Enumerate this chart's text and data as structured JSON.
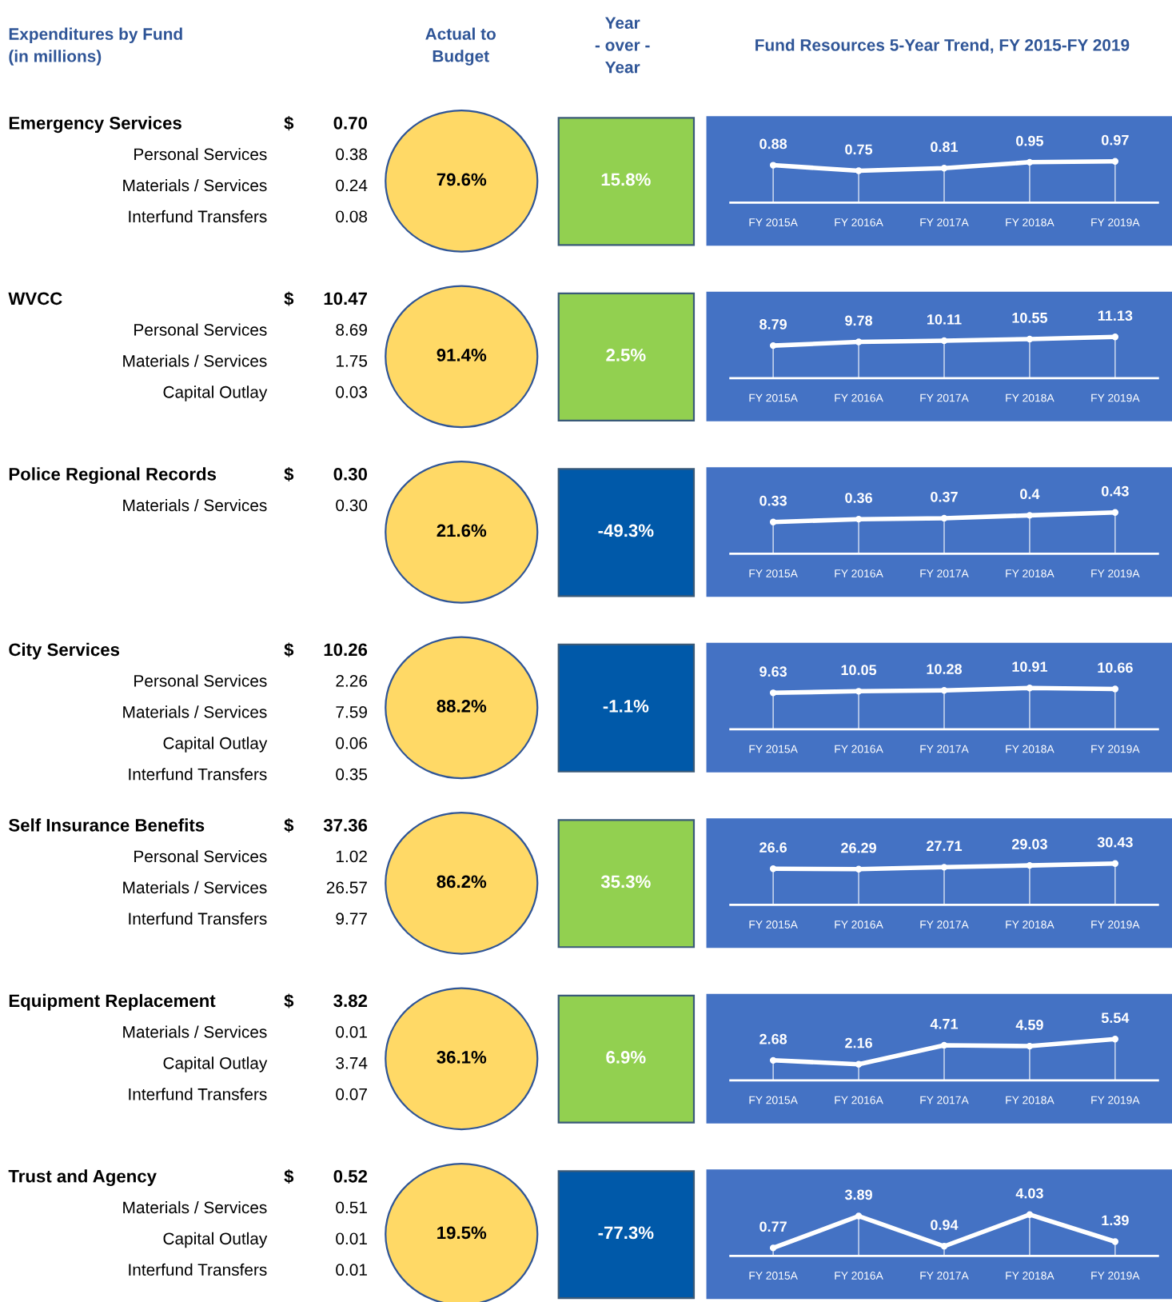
{
  "chart_data": [
    {
      "type": "other",
      "annotations": [
        "Expenditures by Fund\n(in millions)",
        "Actual to\nBudget",
        "Year\n- over -\nYear",
        "Fund Resources 5-Year Trend, FY 2015-FY 2019"
      ]
    },
    {
      "type": "other",
      "title": "Emergency Services",
      "annotations": [
        "$",
        "0.70",
        "79.6%",
        "15.8%"
      ],
      "categories": [
        "Personal Services",
        "Materials / Services",
        "Interfund Transfers"
      ],
      "value_labels": [
        "0.38",
        "0.24",
        "0.08"
      ],
      "colors": [
        "#FFD966",
        "#92D050"
      ]
    },
    {
      "type": "line",
      "categories": [
        "FY 2015A",
        "FY 2016A",
        "FY 2017A",
        "FY 2018A",
        "FY 2019A"
      ],
      "values": [
        0.88,
        0.75,
        0.81,
        0.95,
        0.97
      ],
      "color": "#FFFFFF",
      "marker": "circle",
      "data_labels": true,
      "grid": "x"
    },
    {
      "type": "other",
      "title": "WVCC",
      "annotations": [
        "$",
        "10.47",
        "91.4%",
        "2.5%"
      ],
      "categories": [
        "Personal Services",
        "Materials / Services",
        "Capital Outlay"
      ],
      "value_labels": [
        "8.69",
        "1.75",
        "0.03"
      ],
      "colors": [
        "#FFD966",
        "#92D050"
      ]
    },
    {
      "type": "line",
      "categories": [
        "FY 2015A",
        "FY 2016A",
        "FY 2017A",
        "FY 2018A",
        "FY 2019A"
      ],
      "values": [
        8.79,
        9.78,
        10.11,
        10.55,
        11.13
      ],
      "color": "#FFFFFF",
      "marker": "circle",
      "data_labels": true,
      "grid": "x"
    },
    {
      "type": "other",
      "title": "Police Regional Records",
      "annotations": [
        "$",
        "0.30",
        "21.6%",
        "-49.3%"
      ],
      "categories": [
        "Materials / Services"
      ],
      "value_labels": [
        "0.30"
      ],
      "colors": [
        "#FFD966",
        "#0059A9"
      ]
    },
    {
      "type": "line",
      "categories": [
        "FY 2015A",
        "FY 2016A",
        "FY 2017A",
        "FY 2018A",
        "FY 2019A"
      ],
      "values": [
        0.33,
        0.36,
        0.37,
        0.4,
        0.43
      ],
      "color": "#FFFFFF",
      "marker": "circle",
      "data_labels": true,
      "grid": "x"
    },
    {
      "type": "other",
      "title": "City Services",
      "annotations": [
        "$",
        "10.26",
        "88.2%",
        "-1.1%"
      ],
      "categories": [
        "Personal Services",
        "Materials / Services",
        "Capital Outlay",
        "Interfund Transfers"
      ],
      "value_labels": [
        "2.26",
        "7.59",
        "0.06",
        "0.35"
      ],
      "colors": [
        "#FFD966",
        "#0059A9"
      ]
    },
    {
      "type": "line",
      "categories": [
        "FY 2015A",
        "FY 2016A",
        "FY 2017A",
        "FY 2018A",
        "FY 2019A"
      ],
      "values": [
        9.63,
        10.05,
        10.28,
        10.91,
        10.66
      ],
      "color": "#FFFFFF",
      "marker": "circle",
      "data_labels": true,
      "grid": "x"
    },
    {
      "type": "other",
      "title": "Self Insurance Benefits",
      "annotations": [
        "$",
        "37.36",
        "86.2%",
        "35.3%"
      ],
      "categories": [
        "Personal Services",
        "Materials / Services",
        "Interfund Transfers"
      ],
      "value_labels": [
        "1.02",
        "26.57",
        "9.77"
      ],
      "colors": [
        "#FFD966",
        "#92D050"
      ]
    },
    {
      "type": "line",
      "categories": [
        "FY 2015A",
        "FY 2016A",
        "FY 2017A",
        "FY 2018A",
        "FY 2019A"
      ],
      "values": [
        26.6,
        26.29,
        27.71,
        29.03,
        30.43
      ],
      "color": "#FFFFFF",
      "marker": "circle",
      "data_labels": true,
      "grid": "x"
    },
    {
      "type": "other",
      "title": "Equipment Replacement",
      "annotations": [
        "$",
        "3.82",
        "36.1%",
        "6.9%"
      ],
      "categories": [
        "Materials / Services",
        "Capital Outlay",
        "Interfund Transfers"
      ],
      "value_labels": [
        "0.01",
        "3.74",
        "0.07"
      ],
      "colors": [
        "#FFD966",
        "#92D050"
      ]
    },
    {
      "type": "line",
      "categories": [
        "FY 2015A",
        "FY 2016A",
        "FY 2017A",
        "FY 2018A",
        "FY 2019A"
      ],
      "values": [
        2.68,
        2.16,
        4.71,
        4.59,
        5.54
      ],
      "color": "#FFFFFF",
      "marker": "circle",
      "data_labels": true,
      "grid": "x"
    },
    {
      "type": "other",
      "title": "Trust and Agency",
      "annotations": [
        "$",
        "0.52",
        "19.5%",
        "-77.3%"
      ],
      "categories": [
        "Materials / Services",
        "Capital Outlay",
        "Interfund Transfers"
      ],
      "value_labels": [
        "0.51",
        "0.01",
        "0.01"
      ],
      "colors": [
        "#FFD966",
        "#0059A9"
      ]
    },
    {
      "type": "line",
      "categories": [
        "FY 2015A",
        "FY 2016A",
        "FY 2017A",
        "FY 2018A",
        "FY 2019A"
      ],
      "values": [
        0.77,
        3.89,
        0.94,
        4.03,
        1.39
      ],
      "color": "#FFFFFF",
      "marker": "circle",
      "data_labels": true,
      "grid": "x"
    }
  ]
}
